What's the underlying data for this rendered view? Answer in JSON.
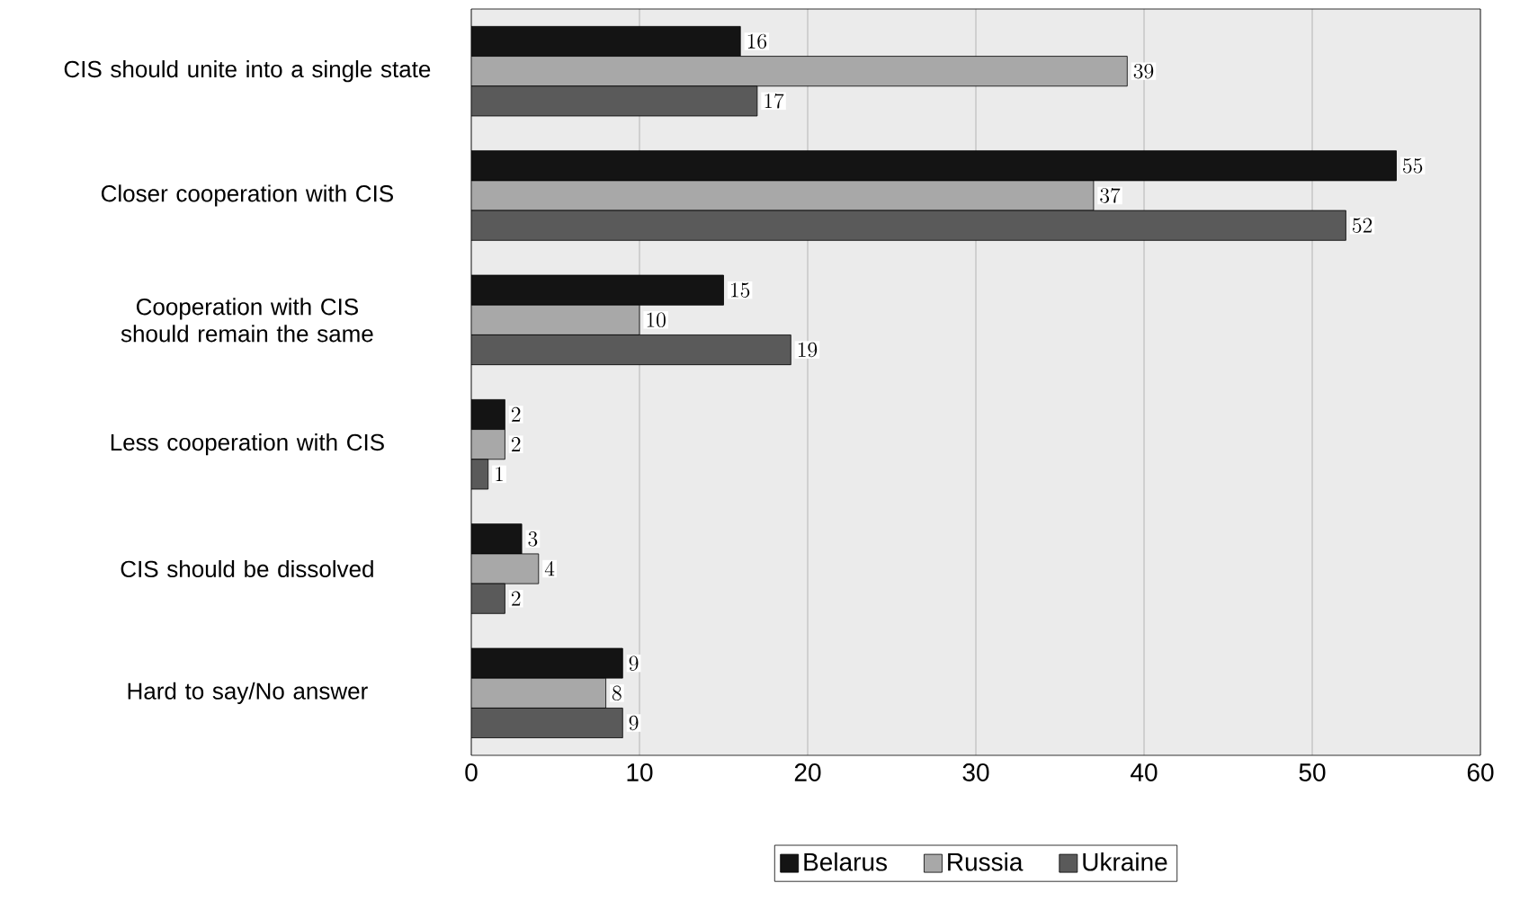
{
  "chart_data": {
    "type": "bar",
    "orientation": "horizontal",
    "categories": [
      "CIS should unite into a single state",
      "Closer cooperation with CIS",
      "Cooperation with CIS should remain the same",
      "Less cooperation with CIS",
      "CIS should be dissolved",
      "Hard to say/No answer"
    ],
    "series": [
      {
        "name": "Belarus",
        "color": "#141414",
        "values": [
          16,
          55,
          15,
          2,
          3,
          9
        ]
      },
      {
        "name": "Russia",
        "color": "#a8a8a8",
        "values": [
          39,
          37,
          10,
          2,
          4,
          8
        ]
      },
      {
        "name": "Ukraine",
        "color": "#5a5a5a",
        "values": [
          17,
          52,
          19,
          1,
          2,
          9
        ]
      }
    ],
    "xlim": [
      0,
      60
    ],
    "xticks": [
      0,
      10,
      20,
      30,
      40,
      50,
      60
    ],
    "grid": "x",
    "legend": "bottom",
    "data_labels": true
  }
}
